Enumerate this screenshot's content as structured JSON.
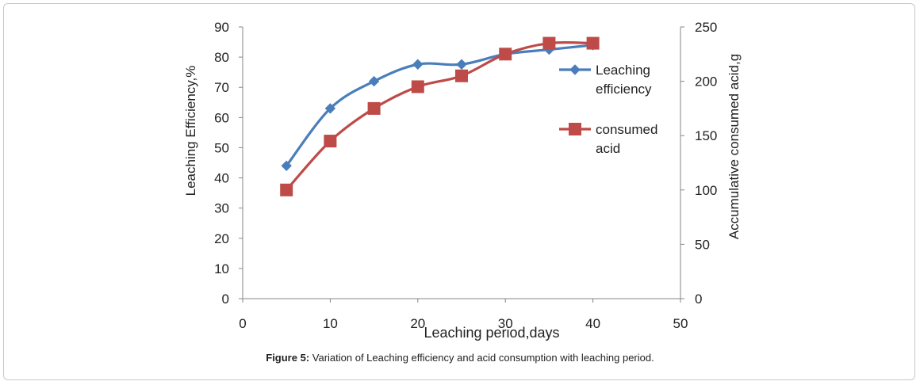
{
  "chart_data": {
    "type": "line",
    "xlabel": "Leaching period,days",
    "ylabel_left": "Leaching Efficiency,%",
    "ylabel_right": "Accumulative consumed acid,g",
    "xlim": [
      0,
      50
    ],
    "ylim_left": [
      0,
      90
    ],
    "ylim_right": [
      0,
      250
    ],
    "x_ticks": [
      0,
      10,
      20,
      30,
      40,
      50
    ],
    "y_left_ticks": [
      0,
      10,
      20,
      30,
      40,
      50,
      60,
      70,
      80,
      90
    ],
    "y_right_ticks": [
      0,
      50,
      100,
      150,
      200,
      250
    ],
    "grid": false,
    "legend_position": "right",
    "series": [
      {
        "name": "Leaching efficiency",
        "legend_lines": [
          "Leaching",
          "efficiency"
        ],
        "axis": "left",
        "marker": "diamond",
        "color": "#4a7ebb",
        "x": [
          5,
          10,
          15,
          20,
          25,
          30,
          35,
          40
        ],
        "values": [
          44,
          63,
          72,
          77.6,
          77.6,
          81,
          82.5,
          84
        ]
      },
      {
        "name": "consumed acid",
        "legend_lines": [
          "consumed",
          "acid"
        ],
        "axis": "right",
        "marker": "square",
        "color": "#be4b48",
        "x": [
          5,
          10,
          15,
          20,
          25,
          30,
          35,
          40
        ],
        "values": [
          100,
          145,
          175,
          195,
          205,
          225,
          235,
          235
        ]
      }
    ]
  },
  "caption": {
    "label": "Figure 5:",
    "text": " Variation of Leaching efficiency and acid consumption with leaching period."
  }
}
